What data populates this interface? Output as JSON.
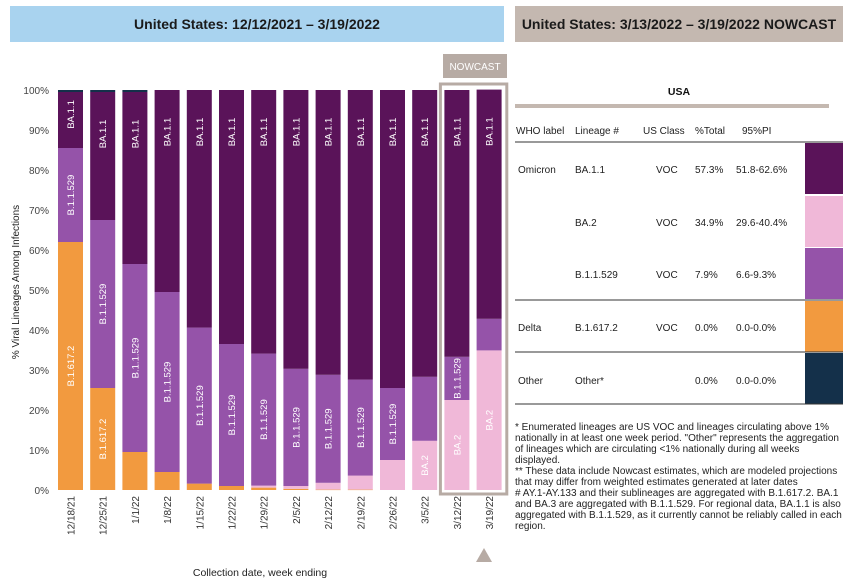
{
  "left_title": "United States: 12/12/2021 – 3/19/2022",
  "right_title": "United States: 3/13/2022 – 3/19/2022 NOWCAST",
  "nowcast_label": "NOWCAST",
  "colors": {
    "BA.1.1": "#5a1359",
    "BA.2": "#f0b8d8",
    "B.1.1.529": "#9553a9",
    "B.1.617.2": "#f29a3f",
    "Other": "#14304a",
    "banner_left": "#a9d3ef",
    "banner_right": "#c4b8b0",
    "nowcast_box": "#b7aba4"
  },
  "chart_data": {
    "type": "bar",
    "stacked": true,
    "xlabel": "Collection date, week ending",
    "ylabel": "% Viral Lineages Among Infections",
    "ylim": [
      0,
      100
    ],
    "yticks": [
      "0%",
      "10%",
      "20%",
      "30%",
      "40%",
      "50%",
      "60%",
      "70%",
      "80%",
      "90%",
      "100%"
    ],
    "categories": [
      "12/18/21",
      "12/25/21",
      "1/1/22",
      "1/8/22",
      "1/15/22",
      "1/22/22",
      "1/29/22",
      "2/5/22",
      "2/12/22",
      "2/19/22",
      "2/26/22",
      "3/5/22",
      "3/12/22",
      "3/19/22"
    ],
    "nowcast_categories": [
      "3/12/22",
      "3/19/22"
    ],
    "series": [
      {
        "name": "B.1.617.2",
        "values": [
          62,
          25.5,
          9.5,
          4.5,
          1.6,
          1,
          0.6,
          0.3,
          0.1,
          0.1,
          0,
          0,
          0,
          0
        ]
      },
      {
        "name": "BA.2",
        "values": [
          0,
          0,
          0,
          0,
          0,
          0,
          0.5,
          0.7,
          1.7,
          3.5,
          7.5,
          12.3,
          22.5,
          34.9
        ]
      },
      {
        "name": "B.1.1.529",
        "values": [
          23.5,
          42,
          47,
          45,
          39,
          35.5,
          33,
          29.3,
          27,
          24,
          18,
          16,
          10.8,
          7.9
        ]
      },
      {
        "name": "BA.1.1",
        "values": [
          14,
          32,
          43,
          50.5,
          59.4,
          63.5,
          65.9,
          69.7,
          71.2,
          72.4,
          74.5,
          71.7,
          66.7,
          57.3
        ]
      },
      {
        "name": "Other",
        "values": [
          0.5,
          0.5,
          0.5,
          0,
          0,
          0,
          0,
          0,
          0,
          0,
          0,
          0,
          0,
          0
        ]
      }
    ],
    "bar_labels": [
      [
        "B.1.617.2",
        "B.1.1.529",
        "BA.1.1"
      ],
      [
        "B.1.617.2",
        "B.1.1.529",
        "BA.1.1"
      ],
      [
        "B.1.1.529",
        "BA.1.1"
      ],
      [
        "B.1.1.529",
        "BA.1.1"
      ],
      [
        "B.1.1.529",
        "BA.1.1"
      ],
      [
        "B.1.1.529",
        "BA.1.1"
      ],
      [
        "B.1.1.529",
        "BA.1.1"
      ],
      [
        "B.1.1.529",
        "BA.1.1"
      ],
      [
        "B.1.1.529",
        "BA.1.1"
      ],
      [
        "B.1.1.529",
        "BA.1.1"
      ],
      [
        "B.1.1.529",
        "BA.1.1"
      ],
      [
        "BA.2",
        "BA.1.1"
      ],
      [
        "BA.2",
        "B.1.1.529",
        "BA.1.1"
      ],
      [
        "BA.2",
        "BA.1.1"
      ]
    ]
  },
  "table": {
    "region": "USA",
    "headers": [
      "WHO label",
      "Lineage #",
      "US Class",
      "%Total",
      "95%PI"
    ],
    "rows": [
      {
        "who": "Omicron",
        "lineage": "BA.1.1",
        "class": "VOC",
        "total": "57.3%",
        "pi": "51.8-62.6%",
        "color": "#5a1359"
      },
      {
        "who": "",
        "lineage": "BA.2",
        "class": "VOC",
        "total": "34.9%",
        "pi": "29.6-40.4%",
        "color": "#f0b8d8"
      },
      {
        "who": "",
        "lineage": "B.1.1.529",
        "class": "VOC",
        "total": "7.9%",
        "pi": "6.6-9.3%",
        "color": "#9553a9"
      },
      {
        "who": "Delta",
        "lineage": "B.1.617.2",
        "class": "VOC",
        "total": "0.0%",
        "pi": "0.0-0.0%",
        "color": "#f29a3f"
      },
      {
        "who": "Other",
        "lineage": "Other*",
        "class": "",
        "total": "0.0%",
        "pi": "0.0-0.0%",
        "color": "#14304a"
      }
    ]
  },
  "footnotes": [
    "*      Enumerated lineages are US VOC and lineages circulating above 1% nationally in at least one week period. \"Other\" represents the aggregation of lineages which are circulating <1% nationally during all weeks displayed.",
    "**     These data include Nowcast estimates, which are modeled projections that may differ from weighted estimates generated at later dates",
    "#      AY.1-AY.133 and their sublineages are aggregated with B.1.617.2. BA.1 and BA.3 are aggregated with B.1.1.529. For regional data, BA.1.1 is also aggregated with B.1.1.529, as it currently cannot be reliably called in each region."
  ]
}
